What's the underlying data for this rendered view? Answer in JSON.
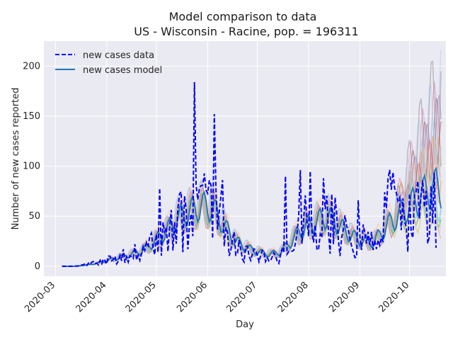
{
  "chart_data": {
    "type": "line",
    "title": "Model comparison to data",
    "subtitle": "US - Wisconsin - Racine, pop. = 196311",
    "xlabel": "Day",
    "ylabel": "Number of new cases reported",
    "x_start": "2020-03-05",
    "x_end": "2020-10-20",
    "xlim": [
      "2020-02-23",
      "2020-10-23"
    ],
    "ylim": [
      -10,
      225
    ],
    "yticks": [
      0,
      50,
      100,
      150,
      200
    ],
    "xticks": [
      "2020-03",
      "2020-04",
      "2020-05",
      "2020-06",
      "2020-07",
      "2020-08",
      "2020-09",
      "2020-10"
    ],
    "grid": true,
    "legend_position": "upper-left",
    "legend": [
      {
        "label": "new cases data",
        "style": "dashed",
        "color": "#0000ff"
      },
      {
        "label": "new cases model",
        "style": "solid",
        "color": "#1f77b4"
      }
    ],
    "series": [
      {
        "name": "new cases data",
        "color": "#0000ff",
        "style": "dashed",
        "weekly_values": [
          0,
          0,
          2,
          4,
          8,
          10,
          13,
          12,
          22,
          28,
          45,
          40,
          70,
          100,
          45,
          18,
          12,
          10,
          8,
          12,
          32,
          50,
          55,
          48,
          35,
          30,
          25,
          28,
          60,
          52,
          55,
          48,
          60,
          52
        ],
        "peaks": [
          {
            "date": "2020-05-03",
            "value": 78
          },
          {
            "date": "2020-05-24",
            "value": 184
          },
          {
            "date": "2020-07-18",
            "value": 90
          },
          {
            "date": "2020-07-27",
            "value": 96
          },
          {
            "date": "2020-08-02",
            "value": 95
          },
          {
            "date": "2020-08-31",
            "value": 66
          },
          {
            "date": "2020-09-18",
            "value": 87
          },
          {
            "date": "2020-10-06",
            "value": 85
          }
        ]
      },
      {
        "name": "new cases model",
        "color": "#1f77b4",
        "style": "solid",
        "weekly_values": [
          0,
          0,
          1,
          3,
          6,
          9,
          12,
          16,
          25,
          35,
          48,
          55,
          60,
          58,
          40,
          25,
          18,
          14,
          12,
          15,
          28,
          40,
          45,
          50,
          40,
          30,
          25,
          25,
          40,
          50,
          60,
          70,
          80,
          75
        ],
        "band_end_range": [
          10,
          215
        ]
      }
    ]
  }
}
